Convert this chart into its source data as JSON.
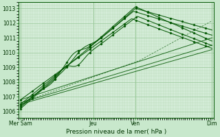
{
  "xlabel": "Pression niveau de la mer( hPa )",
  "bg_color": "#c8e8cc",
  "plot_bg_color": "#d4ecd8",
  "grid_major_color": "#98c898",
  "grid_minor_color": "#b8dbb8",
  "line_color": "#005500",
  "ylim": [
    1005.6,
    1013.4
  ],
  "yticks": [
    1006,
    1007,
    1008,
    1009,
    1010,
    1011,
    1012,
    1013
  ],
  "xtick_labels": [
    "Mer Sam",
    "Jeu",
    "Ven",
    "Dim"
  ],
  "xtick_positions": [
    0.0,
    0.38,
    0.6,
    1.0
  ],
  "vline_positions": [
    0.0,
    0.38,
    0.6,
    1.0
  ],
  "n_points": 200,
  "figsize": [
    3.2,
    2.0
  ],
  "dpi": 100
}
